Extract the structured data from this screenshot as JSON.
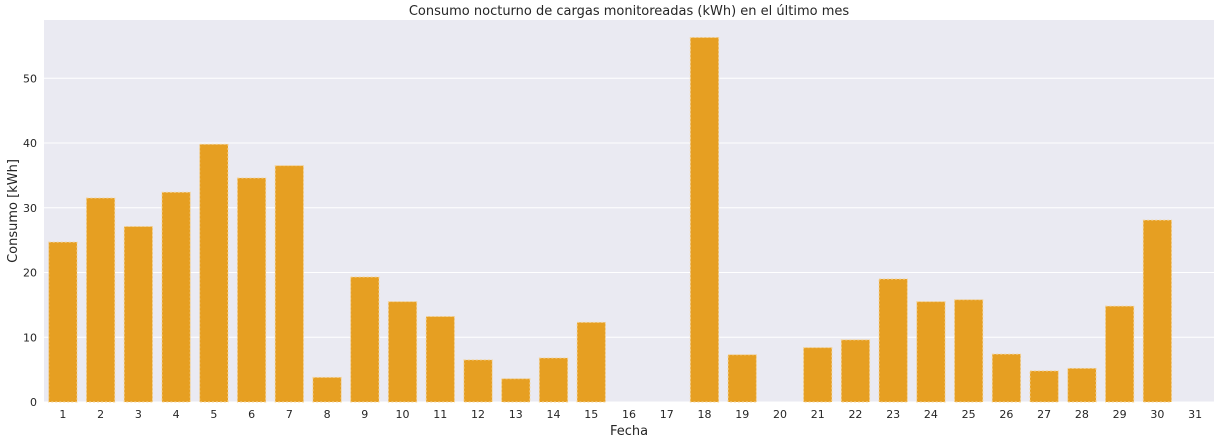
{
  "chart_data": {
    "type": "bar",
    "title": "Consumo nocturno de cargas monitoreadas (kWh) en el último mes",
    "xlabel": "Fecha",
    "ylabel": "Consumo [kWh]",
    "categories": [
      "1",
      "2",
      "3",
      "4",
      "5",
      "6",
      "7",
      "8",
      "9",
      "10",
      "11",
      "12",
      "13",
      "14",
      "15",
      "16",
      "17",
      "18",
      "19",
      "20",
      "21",
      "22",
      "23",
      "24",
      "25",
      "26",
      "27",
      "28",
      "29",
      "30",
      "31"
    ],
    "values": [
      24.7,
      31.5,
      27.1,
      32.4,
      39.8,
      34.6,
      36.5,
      3.8,
      19.3,
      15.5,
      13.2,
      6.5,
      3.6,
      6.8,
      12.3,
      0,
      0,
      56.3,
      7.3,
      0,
      8.4,
      9.6,
      19.0,
      15.5,
      15.8,
      7.4,
      4.8,
      5.2,
      14.8,
      28.1,
      0
    ],
    "ylim": [
      0,
      59
    ],
    "yticks": [
      0,
      10,
      20,
      30,
      40,
      50
    ],
    "grid": true,
    "colors": {
      "bar": "#e69f22",
      "background": "#eaeaf2",
      "grid": "#ffffff"
    }
  }
}
